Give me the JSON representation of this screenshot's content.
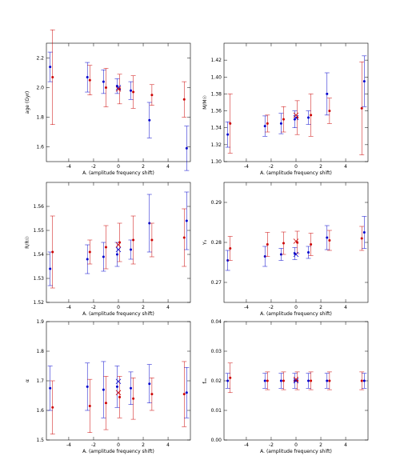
{
  "chart_data": [
    {
      "type": "scatter",
      "xlabel": "A. (amplitude frequency shift)",
      "ylabel": "age (Gyr)",
      "xlim": [
        -5.8,
        5.8
      ],
      "ylim": [
        1.5,
        2.3
      ],
      "xticks": [
        -4,
        -2,
        0,
        2,
        4
      ],
      "yticks": [
        1.6,
        1.8,
        2.0,
        2.2
      ],
      "ytick_labels": [
        "1.6",
        "1.8",
        "2.0",
        "2.2"
      ],
      "series": [
        {
          "color": "#0000cc",
          "x": [
            -5.5,
            -2.5,
            -1.2,
            -0.1,
            1,
            2.5,
            5.5
          ],
          "y": [
            2.14,
            2.07,
            2.04,
            2.01,
            1.98,
            1.78,
            1.59
          ],
          "err": [
            0.1,
            0.1,
            0.08,
            0.05,
            0.06,
            0.12,
            0.15
          ]
        },
        {
          "color": "#cc0000",
          "x": [
            -5.3,
            -2.3,
            -1.0,
            0.1,
            1.2,
            2.7,
            5.3
          ],
          "y": [
            2.07,
            2.05,
            2.0,
            1.99,
            1.97,
            1.95,
            1.92
          ],
          "err": [
            0.32,
            0.1,
            0.13,
            0.1,
            0.11,
            0.07,
            0.12
          ]
        }
      ],
      "cross": {
        "blue": [
          0,
          2.0
        ],
        "red": [
          0,
          1.99
        ]
      }
    },
    {
      "type": "scatter",
      "xlabel": "A. (amplitude frequency shift)",
      "ylabel": "M/M☉",
      "xlim": [
        -5.8,
        5.8
      ],
      "ylim": [
        1.3,
        1.44
      ],
      "xticks": [
        -4,
        -2,
        0,
        2,
        4
      ],
      "yticks": [
        1.3,
        1.32,
        1.34,
        1.36,
        1.38,
        1.4,
        1.42
      ],
      "ytick_labels": [
        "1.30",
        "1.32",
        "1.34",
        "1.36",
        "1.38",
        "1.40",
        "1.42"
      ],
      "series": [
        {
          "color": "#0000cc",
          "x": [
            -5.5,
            -2.5,
            -1.2,
            -0.1,
            1,
            2.5,
            5.5
          ],
          "y": [
            1.332,
            1.342,
            1.345,
            1.35,
            1.352,
            1.38,
            1.395
          ],
          "err": [
            0.015,
            0.012,
            0.012,
            0.01,
            0.008,
            0.025,
            0.03
          ]
        },
        {
          "color": "#cc0000",
          "x": [
            -5.3,
            -2.3,
            -1.0,
            0.1,
            1.2,
            2.7,
            5.3
          ],
          "y": [
            1.345,
            1.345,
            1.35,
            1.352,
            1.355,
            1.36,
            1.363
          ],
          "err": [
            0.035,
            0.01,
            0.015,
            0.02,
            0.025,
            0.015,
            0.055
          ]
        }
      ],
      "cross": {
        "blue": [
          0,
          1.352
        ],
        "red": [
          0,
          1.355
        ]
      }
    },
    {
      "type": "scatter",
      "xlabel": "A. (amplitude frequency shift)",
      "ylabel": "R/R☉",
      "xlim": [
        -5.8,
        5.8
      ],
      "ylim": [
        1.52,
        1.57
      ],
      "xticks": [
        -4,
        -2,
        0,
        2,
        4
      ],
      "yticks": [
        1.52,
        1.53,
        1.54,
        1.55,
        1.56
      ],
      "ytick_labels": [
        "1.52",
        "1.53",
        "1.54",
        "1.55",
        "1.56"
      ],
      "series": [
        {
          "color": "#0000cc",
          "x": [
            -5.5,
            -2.5,
            -1.2,
            -0.1,
            1,
            2.5,
            5.5
          ],
          "y": [
            1.534,
            1.538,
            1.539,
            1.54,
            1.542,
            1.553,
            1.554
          ],
          "err": [
            0.007,
            0.006,
            0.006,
            0.005,
            0.004,
            0.012,
            0.012
          ]
        },
        {
          "color": "#cc0000",
          "x": [
            -5.3,
            -2.3,
            -1.0,
            0.1,
            1.2,
            2.7,
            5.3
          ],
          "y": [
            1.541,
            1.541,
            1.543,
            1.545,
            1.546,
            1.546,
            1.547
          ],
          "err": [
            0.015,
            0.005,
            0.009,
            0.008,
            0.01,
            0.007,
            0.012
          ]
        }
      ],
      "cross": {
        "blue": [
          0,
          1.542
        ],
        "red": [
          0,
          1.544
        ]
      }
    },
    {
      "type": "scatter",
      "xlabel": "A. (amplitude frequency shift)",
      "ylabel": "Y₀",
      "xlim": [
        -5.8,
        5.8
      ],
      "ylim": [
        0.265,
        0.295
      ],
      "xticks": [
        -4,
        -2,
        0,
        2,
        4
      ],
      "yticks": [
        0.27,
        0.28,
        0.29
      ],
      "ytick_labels": [
        "0.27",
        "0.28",
        "0.29"
      ],
      "series": [
        {
          "color": "#0000cc",
          "x": [
            -5.5,
            -2.5,
            -1.2,
            -0.1,
            1,
            2.5,
            5.5
          ],
          "y": [
            0.2755,
            0.2765,
            0.277,
            0.2772,
            0.2775,
            0.2812,
            0.2825
          ],
          "err": [
            0.0025,
            0.0025,
            0.0015,
            0.0015,
            0.0015,
            0.003,
            0.004
          ]
        },
        {
          "color": "#cc0000",
          "x": [
            -5.3,
            -2.3,
            -1.0,
            0.1,
            1.2,
            2.7,
            5.3
          ],
          "y": [
            0.2785,
            0.2795,
            0.2798,
            0.28,
            0.2795,
            0.2805,
            0.281
          ],
          "err": [
            0.003,
            0.003,
            0.0028,
            0.0028,
            0.0028,
            0.0025,
            0.003
          ]
        }
      ],
      "cross": {
        "blue": [
          0,
          0.277
        ],
        "red": [
          0,
          0.2803
        ]
      }
    },
    {
      "type": "scatter",
      "xlabel": "A. (amplitude frequency shift)",
      "ylabel": "α",
      "xlim": [
        -5.8,
        5.8
      ],
      "ylim": [
        1.5,
        1.9
      ],
      "xticks": [
        -4,
        -2,
        0,
        2,
        4
      ],
      "yticks": [
        1.5,
        1.6,
        1.7,
        1.8,
        1.9
      ],
      "ytick_labels": [
        "1.5",
        "1.6",
        "1.7",
        "1.8",
        "1.9"
      ],
      "series": [
        {
          "color": "#0000cc",
          "x": [
            -5.5,
            -2.5,
            -1.2,
            -0.1,
            1,
            2.5,
            5.5
          ],
          "y": [
            1.675,
            1.68,
            1.67,
            1.68,
            1.675,
            1.69,
            1.66
          ],
          "err": [
            0.075,
            0.08,
            0.095,
            0.07,
            0.055,
            0.065,
            0.085
          ]
        },
        {
          "color": "#cc0000",
          "x": [
            -5.3,
            -2.3,
            -1.0,
            0.1,
            1.2,
            2.7,
            5.3
          ],
          "y": [
            1.61,
            1.615,
            1.625,
            1.645,
            1.64,
            1.655,
            1.655
          ],
          "err": [
            0.09,
            0.09,
            0.09,
            0.07,
            0.07,
            0.055,
            0.11
          ]
        }
      ],
      "cross": {
        "blue": [
          0,
          1.698
        ],
        "red": [
          0,
          1.66
        ]
      }
    },
    {
      "type": "scatter",
      "xlabel": "A. (amplitude frequency shift)",
      "ylabel": "fₒᵥ",
      "xlim": [
        -5.8,
        5.8
      ],
      "ylim": [
        0.0,
        0.04
      ],
      "xticks": [
        -4,
        -2,
        0,
        2,
        4
      ],
      "yticks": [
        0.0,
        0.01,
        0.02,
        0.03,
        0.04
      ],
      "ytick_labels": [
        "0.00",
        "0.01",
        "0.02",
        "0.03",
        "0.04"
      ],
      "series": [
        {
          "color": "#0000cc",
          "x": [
            -5.5,
            -2.5,
            -1.2,
            -0.1,
            1,
            2.5,
            5.5
          ],
          "y": [
            0.02,
            0.02,
            0.02,
            0.02,
            0.02,
            0.02,
            0.02
          ],
          "err": [
            0.0025,
            0.0025,
            0.0025,
            0.0025,
            0.0025,
            0.0025,
            0.0025
          ]
        },
        {
          "color": "#cc0000",
          "x": [
            -5.3,
            -2.3,
            -1.0,
            0.1,
            1.2,
            2.7,
            5.3
          ],
          "y": [
            0.021,
            0.02,
            0.02,
            0.02,
            0.02,
            0.02,
            0.02
          ],
          "err": [
            0.005,
            0.003,
            0.003,
            0.003,
            0.003,
            0.003,
            0.003
          ]
        }
      ],
      "cross": {
        "blue": [
          0,
          0.02
        ],
        "red": [
          0,
          0.0205
        ]
      }
    }
  ]
}
